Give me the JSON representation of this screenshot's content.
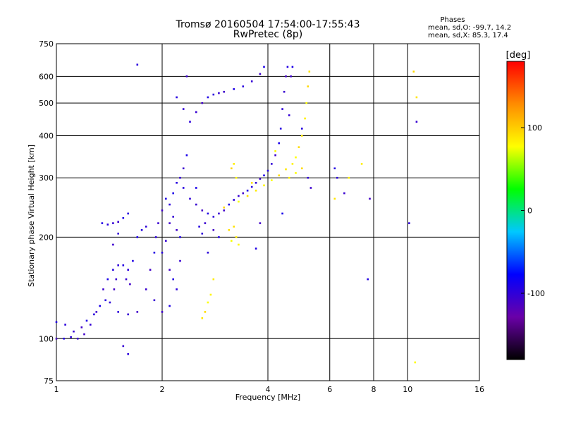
{
  "chart_data": {
    "type": "scatter",
    "title": "Tromsø 20160504 17:54:00-17:55:43",
    "subtitle": "RwPretec (8p)",
    "xlabel": "Frequency [MHz]",
    "ylabel": "Stationary phase Virtual Height [km]",
    "x_scale": "log",
    "y_scale": "log",
    "xlim": [
      1,
      16
    ],
    "ylim": [
      75,
      750
    ],
    "x_ticks": [
      1,
      2,
      4,
      6,
      8,
      10,
      16
    ],
    "x_tick_labels": [
      "1",
      "2",
      "4",
      "6",
      "8",
      "10",
      "16"
    ],
    "y_ticks": [
      75,
      100,
      200,
      300,
      400,
      500,
      600,
      750
    ],
    "y_tick_labels": [
      "75",
      "100",
      "200",
      "300",
      "400",
      "500",
      "600",
      "750"
    ],
    "grid": true,
    "info": {
      "heading": "Phases",
      "line1": "mean, sd,O: -99.7, 14.2",
      "line2": "mean, sd,X:  85.3, 17.4"
    },
    "colorbar": {
      "label": "[deg]",
      "min": -180,
      "max": 180,
      "ticks": [
        100,
        0,
        -100
      ],
      "tick_labels": [
        "100",
        "0",
        "-100"
      ],
      "colors": [
        "#000000",
        "#6a00a8",
        "#0000ff",
        "#00c8ff",
        "#00ff00",
        "#ffff00",
        "#ff8c00",
        "#ff0000"
      ]
    },
    "series": [
      {
        "mode": "O",
        "phase_mean": -99.7,
        "points": [
          [
            1.0,
            100
          ],
          [
            1.05,
            100
          ],
          [
            1.1,
            101
          ],
          [
            1.15,
            100
          ],
          [
            1.2,
            103
          ],
          [
            1.0,
            112
          ],
          [
            1.06,
            110
          ],
          [
            1.12,
            105
          ],
          [
            1.18,
            108
          ],
          [
            1.22,
            113
          ],
          [
            1.28,
            118
          ],
          [
            1.25,
            110
          ],
          [
            1.3,
            120
          ],
          [
            1.33,
            125
          ],
          [
            1.38,
            130
          ],
          [
            1.42,
            128
          ],
          [
            1.36,
            140
          ],
          [
            1.4,
            150
          ],
          [
            1.45,
            160
          ],
          [
            1.5,
            165
          ],
          [
            1.48,
            150
          ],
          [
            1.46,
            140
          ],
          [
            1.55,
            165
          ],
          [
            1.6,
            160
          ],
          [
            1.58,
            150
          ],
          [
            1.62,
            145
          ],
          [
            1.65,
            170
          ],
          [
            1.5,
            120
          ],
          [
            1.6,
            118
          ],
          [
            1.7,
            120
          ],
          [
            1.35,
            220
          ],
          [
            1.4,
            218
          ],
          [
            1.45,
            220
          ],
          [
            1.5,
            222
          ],
          [
            1.55,
            228
          ],
          [
            1.6,
            235
          ],
          [
            1.5,
            205
          ],
          [
            1.45,
            190
          ],
          [
            1.7,
            200
          ],
          [
            1.75,
            210
          ],
          [
            1.8,
            215
          ],
          [
            1.8,
            140
          ],
          [
            1.85,
            160
          ],
          [
            1.9,
            180
          ],
          [
            1.92,
            200
          ],
          [
            1.95,
            220
          ],
          [
            2.0,
            240
          ],
          [
            2.05,
            260
          ],
          [
            2.1,
            250
          ],
          [
            2.15,
            230
          ],
          [
            2.2,
            210
          ],
          [
            2.25,
            200
          ],
          [
            2.0,
            180
          ],
          [
            2.05,
            195
          ],
          [
            2.1,
            220
          ],
          [
            2.15,
            270
          ],
          [
            2.2,
            290
          ],
          [
            2.25,
            300
          ],
          [
            2.3,
            320
          ],
          [
            2.35,
            350
          ],
          [
            2.3,
            280
          ],
          [
            2.4,
            260
          ],
          [
            2.5,
            250
          ],
          [
            2.6,
            240
          ],
          [
            2.7,
            235
          ],
          [
            2.8,
            230
          ],
          [
            2.9,
            235
          ],
          [
            3.0,
            240
          ],
          [
            3.1,
            250
          ],
          [
            3.2,
            258
          ],
          [
            3.3,
            265
          ],
          [
            3.4,
            270
          ],
          [
            3.5,
            275
          ],
          [
            3.6,
            282
          ],
          [
            3.7,
            290
          ],
          [
            3.8,
            298
          ],
          [
            3.9,
            305
          ],
          [
            4.0,
            315
          ],
          [
            4.1,
            330
          ],
          [
            4.2,
            350
          ],
          [
            4.3,
            380
          ],
          [
            4.35,
            420
          ],
          [
            4.4,
            480
          ],
          [
            4.45,
            540
          ],
          [
            4.5,
            600
          ],
          [
            4.55,
            640
          ],
          [
            2.4,
            440
          ],
          [
            2.5,
            470
          ],
          [
            2.6,
            500
          ],
          [
            2.7,
            520
          ],
          [
            2.8,
            530
          ],
          [
            2.9,
            535
          ],
          [
            3.0,
            540
          ],
          [
            3.2,
            550
          ],
          [
            3.4,
            560
          ],
          [
            3.6,
            580
          ],
          [
            3.8,
            610
          ],
          [
            3.9,
            640
          ],
          [
            2.2,
            520
          ],
          [
            2.3,
            480
          ],
          [
            2.35,
            600
          ],
          [
            2.5,
            280
          ],
          [
            2.55,
            215
          ],
          [
            2.6,
            205
          ],
          [
            2.65,
            220
          ],
          [
            2.8,
            210
          ],
          [
            2.9,
            200
          ],
          [
            2.7,
            180
          ],
          [
            2.25,
            170
          ],
          [
            2.1,
            160
          ],
          [
            2.15,
            150
          ],
          [
            2.2,
            140
          ],
          [
            1.9,
            130
          ],
          [
            2.0,
            120
          ],
          [
            2.1,
            125
          ],
          [
            1.7,
            650
          ],
          [
            4.6,
            460
          ],
          [
            4.65,
            600
          ],
          [
            4.7,
            640
          ],
          [
            5.0,
            420
          ],
          [
            5.2,
            300
          ],
          [
            5.3,
            280
          ],
          [
            4.4,
            235
          ],
          [
            6.2,
            320
          ],
          [
            6.3,
            300
          ],
          [
            6.6,
            270
          ],
          [
            7.8,
            260
          ],
          [
            7.7,
            150
          ],
          [
            10.1,
            220
          ],
          [
            10.6,
            440
          ],
          [
            3.8,
            220
          ],
          [
            3.7,
            185
          ],
          [
            1.6,
            90
          ],
          [
            1.55,
            95
          ]
        ]
      },
      {
        "mode": "X",
        "phase_mean": 85.3,
        "points": [
          [
            3.3,
            255
          ],
          [
            3.5,
            265
          ],
          [
            3.7,
            275
          ],
          [
            3.9,
            285
          ],
          [
            4.1,
            295
          ],
          [
            4.3,
            305
          ],
          [
            4.5,
            318
          ],
          [
            4.7,
            330
          ],
          [
            4.8,
            345
          ],
          [
            4.9,
            370
          ],
          [
            5.0,
            400
          ],
          [
            5.1,
            450
          ],
          [
            5.15,
            500
          ],
          [
            5.2,
            560
          ],
          [
            5.25,
            620
          ],
          [
            3.2,
            330
          ],
          [
            3.25,
            300
          ],
          [
            3.15,
            320
          ],
          [
            3.2,
            215
          ],
          [
            3.25,
            200
          ],
          [
            3.3,
            190
          ],
          [
            3.15,
            195
          ],
          [
            3.1,
            210
          ],
          [
            2.8,
            150
          ],
          [
            2.75,
            135
          ],
          [
            2.7,
            128
          ],
          [
            2.65,
            120
          ],
          [
            2.6,
            115
          ],
          [
            4.6,
            300
          ],
          [
            4.8,
            310
          ],
          [
            5.0,
            320
          ],
          [
            6.2,
            260
          ],
          [
            6.8,
            300
          ],
          [
            10.5,
            85
          ],
          [
            10.4,
            620
          ],
          [
            10.6,
            520
          ],
          [
            7.4,
            330
          ],
          [
            4.2,
            360
          ],
          [
            3.0,
            245
          ],
          [
            3.6,
            290
          ]
        ]
      }
    ]
  }
}
